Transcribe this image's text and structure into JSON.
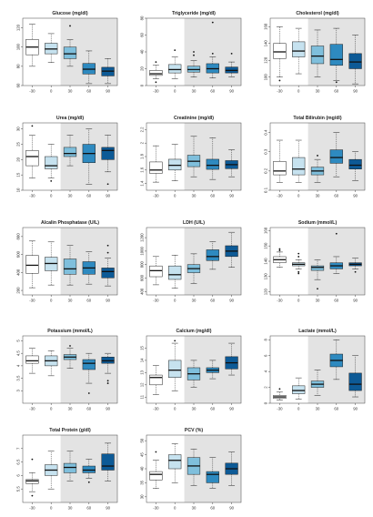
{
  "figure": {
    "x_ticks": [
      "-30",
      "0",
      "30",
      "60",
      "90"
    ],
    "box_colors": [
      "#ffffff",
      "#c6e2ef",
      "#7fbfdc",
      "#2e8ac0",
      "#0d5a96"
    ],
    "shade_color": "#e3e3e3",
    "shade_from_index": 2
  },
  "chart_data": [
    {
      "type": "box",
      "title": "Glucose (mg/dl)",
      "ylim": [
        60,
        130
      ],
      "yticks": [
        60,
        80,
        100,
        120
      ],
      "categories": [
        "-30",
        "0",
        "30",
        "60",
        "90"
      ],
      "boxes": [
        {
          "low": 80,
          "q1": 92,
          "median": 100,
          "q3": 108,
          "high": 124,
          "outliers": []
        },
        {
          "low": 84,
          "q1": 93,
          "median": 98,
          "q3": 104,
          "high": 114,
          "outliers": []
        },
        {
          "low": 80,
          "q1": 88,
          "median": 93,
          "q3": 100,
          "high": 108,
          "outliers": [
            122
          ]
        },
        {
          "low": 62,
          "q1": 72,
          "median": 77,
          "q3": 83,
          "high": 96,
          "outliers": []
        },
        {
          "low": 62,
          "q1": 70,
          "median": 75,
          "q3": 79,
          "high": 88,
          "outliers": []
        }
      ]
    },
    {
      "type": "box",
      "title": "Triglyceride (mg/dl)",
      "ylim": [
        0,
        80
      ],
      "yticks": [
        0,
        20,
        40,
        60,
        80
      ],
      "categories": [
        "-30",
        "0",
        "30",
        "60",
        "90"
      ],
      "boxes": [
        {
          "low": 8,
          "q1": 12,
          "median": 14,
          "q3": 18,
          "high": 24,
          "outliers": [
            4,
            28
          ]
        },
        {
          "low": 8,
          "q1": 15,
          "median": 19,
          "q3": 25,
          "high": 34,
          "outliers": [
            42
          ]
        },
        {
          "low": 10,
          "q1": 16,
          "median": 19,
          "q3": 23,
          "high": 30,
          "outliers": [
            36,
            40
          ]
        },
        {
          "low": 9,
          "q1": 15,
          "median": 20,
          "q3": 26,
          "high": 34,
          "outliers": [
            38,
            75
          ]
        },
        {
          "low": 10,
          "q1": 15,
          "median": 18,
          "q3": 22,
          "high": 28,
          "outliers": [
            38
          ]
        }
      ]
    },
    {
      "type": "box",
      "title": "Cholesterol (mg/dl)",
      "ylim": [
        90,
        170
      ],
      "yticks": [
        100,
        120,
        140,
        160
      ],
      "categories": [
        "-30",
        "0",
        "30",
        "60",
        "90"
      ],
      "boxes": [
        {
          "low": 100,
          "q1": 122,
          "median": 130,
          "q3": 140,
          "high": 160,
          "outliers": [
            96
          ]
        },
        {
          "low": 104,
          "q1": 124,
          "median": 131,
          "q3": 142,
          "high": 158,
          "outliers": []
        },
        {
          "low": 100,
          "q1": 116,
          "median": 125,
          "q3": 137,
          "high": 156,
          "outliers": []
        },
        {
          "low": 96,
          "q1": 114,
          "median": 121,
          "q3": 139,
          "high": 158,
          "outliers": [
            94
          ]
        },
        {
          "low": 92,
          "q1": 110,
          "median": 118,
          "q3": 128,
          "high": 150,
          "outliers": []
        }
      ]
    },
    {
      "type": "box",
      "title": "Urea (mg/dl)",
      "ylim": [
        10,
        32
      ],
      "yticks": [
        10,
        15,
        20,
        25,
        30
      ],
      "categories": [
        "-30",
        "0",
        "30",
        "60",
        "90"
      ],
      "boxes": [
        {
          "low": 14,
          "q1": 18,
          "median": 21,
          "q3": 23,
          "high": 28,
          "outliers": [
            31
          ]
        },
        {
          "low": 14,
          "q1": 17,
          "median": 18,
          "q3": 21,
          "high": 25,
          "outliers": [
            13
          ]
        },
        {
          "low": 18,
          "q1": 21,
          "median": 22,
          "q3": 24,
          "high": 28,
          "outliers": []
        },
        {
          "low": 12,
          "q1": 19,
          "median": 22,
          "q3": 25,
          "high": 30,
          "outliers": []
        },
        {
          "low": 16,
          "q1": 20,
          "median": 23,
          "q3": 24,
          "high": 28,
          "outliers": [
            12
          ]
        }
      ]
    },
    {
      "type": "box",
      "title": "Creatinine (mg/dl)",
      "ylim": [
        1.3,
        2.3
      ],
      "yticks": [
        1.4,
        1.6,
        1.8,
        2.0,
        2.2
      ],
      "categories": [
        "-30",
        "0",
        "30",
        "60",
        "90"
      ],
      "boxes": [
        {
          "low": 1.42,
          "q1": 1.55,
          "median": 1.6,
          "q3": 1.72,
          "high": 1.96,
          "outliers": []
        },
        {
          "low": 1.44,
          "q1": 1.6,
          "median": 1.67,
          "q3": 1.76,
          "high": 1.98,
          "outliers": []
        },
        {
          "low": 1.5,
          "q1": 1.65,
          "median": 1.73,
          "q3": 1.82,
          "high": 2.1,
          "outliers": []
        },
        {
          "low": 1.46,
          "q1": 1.61,
          "median": 1.67,
          "q3": 1.76,
          "high": 2.08,
          "outliers": []
        },
        {
          "low": 1.5,
          "q1": 1.62,
          "median": 1.68,
          "q3": 1.74,
          "high": 1.9,
          "outliers": []
        }
      ]
    },
    {
      "type": "box",
      "title": "Total Bilirubin (mg/dl)",
      "ylim": [
        0.1,
        0.45
      ],
      "yticks": [
        0.1,
        0.2,
        0.3,
        0.4
      ],
      "categories": [
        "-30",
        "0",
        "30",
        "60",
        "90"
      ],
      "boxes": [
        {
          "low": 0.14,
          "q1": 0.18,
          "median": 0.2,
          "q3": 0.25,
          "high": 0.36,
          "outliers": []
        },
        {
          "low": 0.14,
          "q1": 0.18,
          "median": 0.21,
          "q3": 0.27,
          "high": 0.36,
          "outliers": []
        },
        {
          "low": 0.14,
          "q1": 0.18,
          "median": 0.2,
          "q3": 0.22,
          "high": 0.26,
          "outliers": [
            0.28
          ]
        },
        {
          "low": 0.17,
          "q1": 0.24,
          "median": 0.27,
          "q3": 0.31,
          "high": 0.4,
          "outliers": []
        },
        {
          "low": 0.15,
          "q1": 0.21,
          "median": 0.23,
          "q3": 0.26,
          "high": 0.3,
          "outliers": []
        }
      ]
    },
    {
      "type": "box",
      "title": "Alcalin Phosphatase (U/L)",
      "ylim": [
        150,
        900
      ],
      "yticks": [
        200,
        400,
        600,
        800
      ],
      "categories": [
        "-30",
        "0",
        "30",
        "60",
        "90"
      ],
      "boxes": [
        {
          "low": 230,
          "q1": 390,
          "median": 480,
          "q3": 590,
          "high": 750,
          "outliers": []
        },
        {
          "low": 260,
          "q1": 420,
          "median": 500,
          "q3": 570,
          "high": 740,
          "outliers": []
        },
        {
          "low": 260,
          "q1": 380,
          "median": 440,
          "q3": 550,
          "high": 700,
          "outliers": []
        },
        {
          "low": 270,
          "q1": 380,
          "median": 450,
          "q3": 520,
          "high": 630,
          "outliers": []
        },
        {
          "low": 250,
          "q1": 340,
          "median": 410,
          "q3": 450,
          "high": 560,
          "outliers": [
            620,
            700
          ]
        }
      ]
    },
    {
      "type": "box",
      "title": "LDH (U/L)",
      "ylim": [
        350,
        1350
      ],
      "yticks": [
        400,
        600,
        800,
        1000,
        1200
      ],
      "categories": [
        "-30",
        "0",
        "30",
        "60",
        "90"
      ],
      "boxes": [
        {
          "low": 500,
          "q1": 620,
          "median": 710,
          "q3": 780,
          "high": 920,
          "outliers": []
        },
        {
          "low": 450,
          "q1": 580,
          "median": 650,
          "q3": 780,
          "high": 940,
          "outliers": []
        },
        {
          "low": 520,
          "q1": 680,
          "median": 740,
          "q3": 800,
          "high": 960,
          "outliers": []
        },
        {
          "low": 730,
          "q1": 860,
          "median": 920,
          "q3": 1020,
          "high": 1140,
          "outliers": []
        },
        {
          "low": 760,
          "q1": 920,
          "median": 1000,
          "q3": 1080,
          "high": 1280,
          "outliers": []
        }
      ]
    },
    {
      "type": "box",
      "title": "Sodium (mmol/L)",
      "ylim": [
        118,
        162
      ],
      "yticks": [
        120,
        130,
        140,
        150,
        160
      ],
      "categories": [
        "-30",
        "0",
        "30",
        "60",
        "90"
      ],
      "boxes": [
        {
          "low": 136,
          "q1": 139,
          "median": 141,
          "q3": 143,
          "high": 146,
          "outliers": [
            147,
            148
          ]
        },
        {
          "low": 135,
          "q1": 137,
          "median": 138,
          "q3": 139,
          "high": 141,
          "outliers": [
            143,
            145,
            133,
            132
          ]
        },
        {
          "low": 128,
          "q1": 134,
          "median": 136,
          "q3": 137,
          "high": 141,
          "outliers": [
            122
          ]
        },
        {
          "low": 132,
          "q1": 135,
          "median": 137,
          "q3": 139,
          "high": 143,
          "outliers": [
            158
          ]
        },
        {
          "low": 135,
          "q1": 137,
          "median": 138,
          "q3": 139,
          "high": 142,
          "outliers": [
            133
          ]
        }
      ]
    },
    {
      "type": "box",
      "title": "Potassium (mmol/L)",
      "ylim": [
        2.5,
        5.2
      ],
      "yticks": [
        3.0,
        3.5,
        4.0,
        4.5,
        5.0
      ],
      "categories": [
        "-30",
        "0",
        "30",
        "60",
        "90"
      ],
      "boxes": [
        {
          "low": 3.7,
          "q1": 4.1,
          "median": 4.2,
          "q3": 4.4,
          "high": 4.7,
          "outliers": []
        },
        {
          "low": 3.6,
          "q1": 4.0,
          "median": 4.2,
          "q3": 4.4,
          "high": 4.6,
          "outliers": []
        },
        {
          "low": 3.9,
          "q1": 4.25,
          "median": 4.35,
          "q3": 4.45,
          "high": 4.7,
          "outliers": [
            4.8
          ]
        },
        {
          "low": 3.3,
          "q1": 3.85,
          "median": 4.1,
          "q3": 4.25,
          "high": 4.5,
          "outliers": [
            2.9
          ]
        },
        {
          "low": 3.7,
          "q1": 4.1,
          "median": 4.2,
          "q3": 4.35,
          "high": 4.5,
          "outliers": [
            3.4,
            3.3
          ]
        }
      ]
    },
    {
      "type": "box",
      "title": "Calcium (mg/dl)",
      "ylim": [
        10.5,
        16
      ],
      "yticks": [
        11,
        12,
        13,
        14,
        15
      ],
      "categories": [
        "-30",
        "0",
        "30",
        "60",
        "90"
      ],
      "boxes": [
        {
          "low": 11.2,
          "q1": 12.0,
          "median": 12.6,
          "q3": 12.8,
          "high": 13.6,
          "outliers": []
        },
        {
          "low": 11.5,
          "q1": 12.6,
          "median": 13.2,
          "q3": 14.0,
          "high": 15.4,
          "outliers": [
            15.6
          ]
        },
        {
          "low": 11.8,
          "q1": 12.4,
          "median": 12.9,
          "q3": 13.4,
          "high": 14.0,
          "outliers": []
        },
        {
          "low": 12.5,
          "q1": 13.0,
          "median": 13.2,
          "q3": 13.4,
          "high": 14.0,
          "outliers": []
        },
        {
          "low": 12.8,
          "q1": 13.3,
          "median": 13.8,
          "q3": 14.3,
          "high": 15.4,
          "outliers": []
        }
      ]
    },
    {
      "type": "box",
      "title": "Lactate (mmol/L)",
      "ylim": [
        0,
        8.5
      ],
      "yticks": [
        0,
        2,
        4,
        6,
        8
      ],
      "categories": [
        "-30",
        "0",
        "30",
        "60",
        "90"
      ],
      "boxes": [
        {
          "low": 0.4,
          "q1": 0.6,
          "median": 0.8,
          "q3": 1.0,
          "high": 1.4,
          "outliers": [
            1.8
          ]
        },
        {
          "low": 0.5,
          "q1": 1.2,
          "median": 1.6,
          "q3": 2.2,
          "high": 3.2,
          "outliers": []
        },
        {
          "low": 1.0,
          "q1": 2.0,
          "median": 2.4,
          "q3": 2.8,
          "high": 4.2,
          "outliers": []
        },
        {
          "low": 3.0,
          "q1": 4.6,
          "median": 5.4,
          "q3": 6.2,
          "high": 8.0,
          "outliers": []
        },
        {
          "low": 0.8,
          "q1": 1.6,
          "median": 2.4,
          "q3": 3.8,
          "high": 6.0,
          "outliers": []
        }
      ]
    },
    {
      "type": "box",
      "title": "Total Protein (g/dl)",
      "ylim": [
        5,
        7.5
      ],
      "yticks": [
        5.5,
        6.0,
        6.5,
        7.0
      ],
      "categories": [
        "-30",
        "0",
        "30",
        "60",
        "90"
      ],
      "boxes": [
        {
          "low": 5.4,
          "q1": 5.7,
          "median": 5.8,
          "q3": 5.85,
          "high": 6.1,
          "outliers": [
            6.6,
            5.25
          ]
        },
        {
          "low": 5.5,
          "q1": 6.0,
          "median": 6.2,
          "q3": 6.4,
          "high": 6.9,
          "outliers": []
        },
        {
          "low": 5.8,
          "q1": 6.1,
          "median": 6.3,
          "q3": 6.45,
          "high": 6.9,
          "outliers": []
        },
        {
          "low": 5.9,
          "q1": 6.1,
          "median": 6.2,
          "q3": 6.35,
          "high": 6.6,
          "outliers": [
            5.75
          ]
        },
        {
          "low": 5.8,
          "q1": 6.2,
          "median": 6.35,
          "q3": 6.8,
          "high": 7.2,
          "outliers": []
        }
      ]
    },
    {
      "type": "box",
      "title": "PCV (%)",
      "ylim": [
        28,
        52
      ],
      "yticks": [
        30,
        35,
        40,
        45,
        50
      ],
      "categories": [
        "-30",
        "0",
        "30",
        "60",
        "90"
      ],
      "boxes": [
        {
          "low": 33,
          "q1": 36,
          "median": 38,
          "q3": 39,
          "high": 43,
          "outliers": [
            46
          ]
        },
        {
          "low": 35,
          "q1": 40,
          "median": 43,
          "q3": 45,
          "high": 49,
          "outliers": []
        },
        {
          "low": 34,
          "q1": 38,
          "median": 41,
          "q3": 44,
          "high": 47,
          "outliers": []
        },
        {
          "low": 33,
          "q1": 35,
          "median": 38,
          "q3": 39,
          "high": 44,
          "outliers": []
        },
        {
          "low": 34,
          "q1": 38,
          "median": 40,
          "q3": 42,
          "high": 46,
          "outliers": []
        }
      ]
    }
  ]
}
